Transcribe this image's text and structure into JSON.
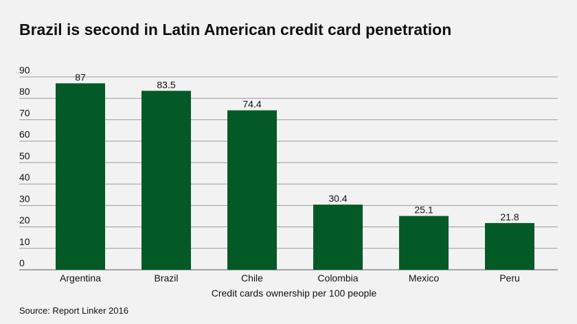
{
  "chart_data": {
    "type": "bar",
    "title": "Brazil is second in Latin American credit card penetration",
    "xlabel": "Credit cards ownership per 100 people",
    "ylabel": "",
    "categories": [
      "Argentina",
      "Brazil",
      "Chile",
      "Colombia",
      "Mexico",
      "Peru"
    ],
    "values": [
      87,
      83.5,
      74.4,
      30.4,
      25.1,
      21.8
    ],
    "value_labels": [
      "87",
      "83.5",
      "74.4",
      "30.4",
      "25.1",
      "21.8"
    ],
    "ylim": [
      0,
      90
    ],
    "yticks": [
      0,
      10,
      20,
      30,
      40,
      50,
      60,
      70,
      80,
      90
    ],
    "grid": true,
    "legend": "none",
    "bar_color": "#045a27",
    "source": "Source: Report Linker 2016"
  }
}
